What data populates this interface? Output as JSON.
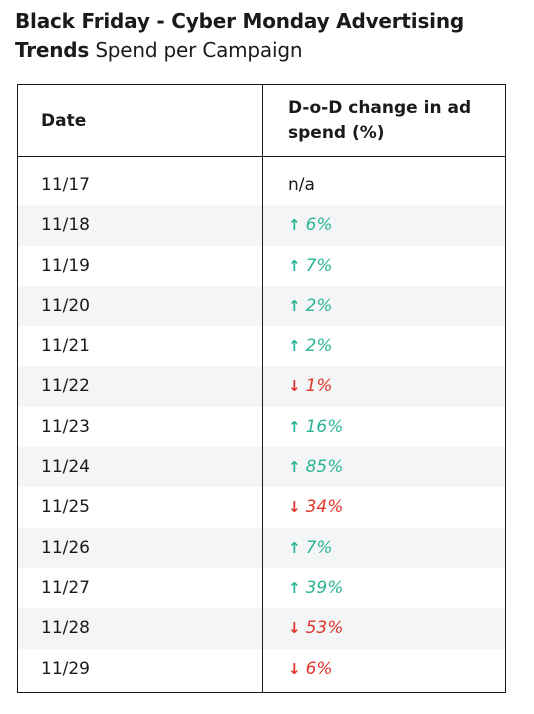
{
  "title": {
    "bold": "Black Friday - Cyber Monday Advertising Trends",
    "light": "Spend per Campaign"
  },
  "table": {
    "headers": {
      "date": "Date",
      "change": "D-o-D change in ad spend (%)"
    },
    "rows": [
      {
        "date": "11/17",
        "change": "n/a",
        "direction": "none"
      },
      {
        "date": "11/18",
        "change": "6%",
        "direction": "up"
      },
      {
        "date": "11/19",
        "change": "7%",
        "direction": "up"
      },
      {
        "date": "11/20",
        "change": "2%",
        "direction": "up"
      },
      {
        "date": "11/21",
        "change": "2%",
        "direction": "up"
      },
      {
        "date": "11/22",
        "change": "1%",
        "direction": "down"
      },
      {
        "date": "11/23",
        "change": "16%",
        "direction": "up"
      },
      {
        "date": "11/24",
        "change": "85%",
        "direction": "up"
      },
      {
        "date": "11/25",
        "change": "34%",
        "direction": "down"
      },
      {
        "date": "11/26",
        "change": "7%",
        "direction": "up"
      },
      {
        "date": "11/27",
        "change": "39%",
        "direction": "up"
      },
      {
        "date": "11/28",
        "change": "53%",
        "direction": "down"
      },
      {
        "date": "11/29",
        "change": "6%",
        "direction": "down"
      }
    ]
  },
  "colors": {
    "up": "#2bb596",
    "down": "#e0352b",
    "row_shade": "#f4f5f6"
  },
  "icons": {
    "up": "arrow-up-icon",
    "down": "arrow-down-icon"
  },
  "chart_data": {
    "type": "table",
    "title": "Black Friday - Cyber Monday Advertising Trends Spend per Campaign",
    "columns": [
      "Date",
      "D-o-D change in ad spend (%)"
    ],
    "categories": [
      "11/17",
      "11/18",
      "11/19",
      "11/20",
      "11/21",
      "11/22",
      "11/23",
      "11/24",
      "11/25",
      "11/26",
      "11/27",
      "11/28",
      "11/29"
    ],
    "values": [
      null,
      6,
      7,
      2,
      2,
      -1,
      16,
      85,
      -34,
      7,
      39,
      -53,
      -6
    ]
  }
}
